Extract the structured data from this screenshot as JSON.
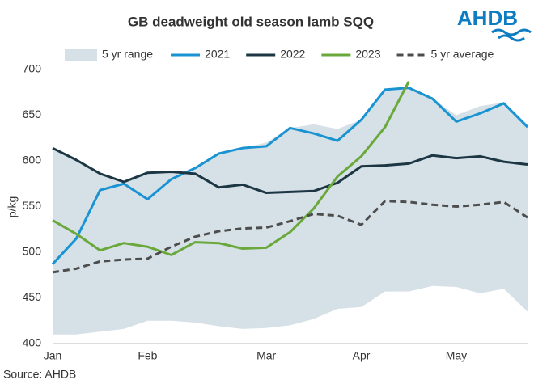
{
  "chart_data": {
    "type": "line",
    "title": "GB deadweight old season lamb SQQ",
    "brand": "AHDB",
    "source": "Source: AHDB",
    "y_label": "p/kg",
    "categories": [
      "Jan",
      null,
      null,
      null,
      "Feb",
      null,
      null,
      null,
      null,
      "Mar",
      null,
      null,
      null,
      "Apr",
      null,
      null,
      null,
      "May",
      null,
      null,
      null
    ],
    "ylim": [
      400,
      700
    ],
    "yticks": [
      400,
      450,
      500,
      550,
      600,
      650,
      700
    ],
    "range": {
      "name": "5 yr range",
      "color": "#d6e1e7",
      "upper": [
        614,
        601,
        586,
        577,
        587,
        588,
        590,
        608,
        614,
        620,
        636,
        640,
        635,
        645,
        678,
        680,
        668,
        650,
        660,
        664,
        640
      ],
      "lower": [
        410,
        410,
        413,
        416,
        425,
        425,
        423,
        419,
        416,
        417,
        420,
        427,
        438,
        440,
        457,
        457,
        463,
        462,
        455,
        460,
        435
      ]
    },
    "series": [
      {
        "name": "2021",
        "color": "#1a93d2",
        "dash": false,
        "values": [
          487,
          515,
          568,
          575,
          558,
          580,
          592,
          608,
          614,
          616,
          636,
          630,
          622,
          645,
          678,
          680,
          668,
          643,
          652,
          663,
          637
        ]
      },
      {
        "name": "2022",
        "color": "#1c3643",
        "dash": false,
        "values": [
          614,
          601,
          586,
          577,
          587,
          588,
          586,
          571,
          574,
          565,
          566,
          567,
          576,
          594,
          595,
          597,
          606,
          603,
          605,
          599,
          596
        ]
      },
      {
        "name": "2023",
        "color": "#6aa83c",
        "dash": false,
        "values": [
          535,
          520,
          502,
          510,
          506,
          497,
          511,
          510,
          504,
          505,
          522,
          548,
          583,
          605,
          637,
          687,
          null,
          null,
          null,
          null,
          null
        ]
      },
      {
        "name": "5 yr average",
        "color": "#4d4d4d",
        "dash": true,
        "values": [
          478,
          482,
          490,
          492,
          493,
          506,
          517,
          523,
          526,
          527,
          534,
          542,
          540,
          530,
          556,
          555,
          552,
          550,
          552,
          555,
          538
        ]
      }
    ]
  }
}
